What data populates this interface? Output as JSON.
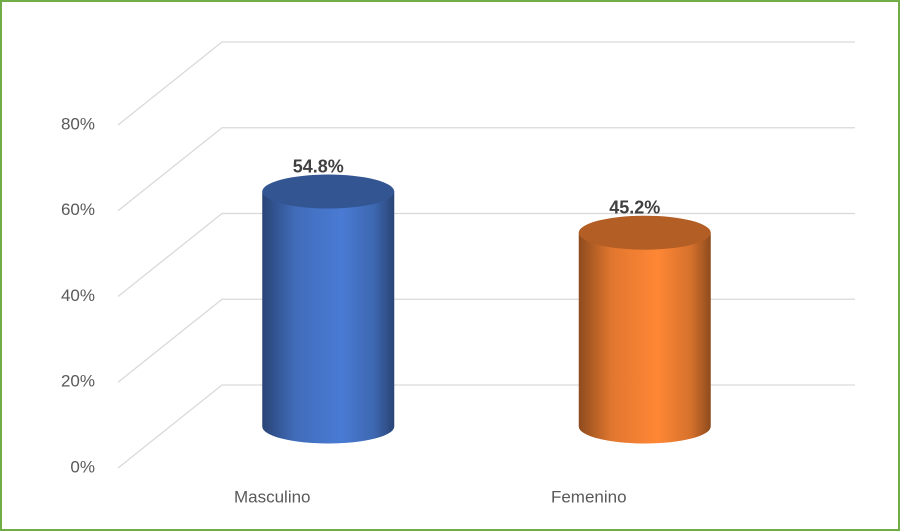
{
  "chart_data": {
    "type": "bar3d",
    "categories": [
      "Masculino",
      "Femenino"
    ],
    "values": [
      54.8,
      45.2
    ],
    "value_labels": [
      "54.8%",
      "45.2%"
    ],
    "colors": [
      "#4472c4",
      "#ed7d31"
    ],
    "ylim": [
      0,
      80
    ],
    "yticks": [
      {
        "value": 0,
        "label": "0%"
      },
      {
        "value": 20,
        "label": "20%"
      },
      {
        "value": 40,
        "label": "40%"
      },
      {
        "value": 60,
        "label": "60%"
      },
      {
        "value": 80,
        "label": "80%"
      }
    ],
    "grid": true
  }
}
